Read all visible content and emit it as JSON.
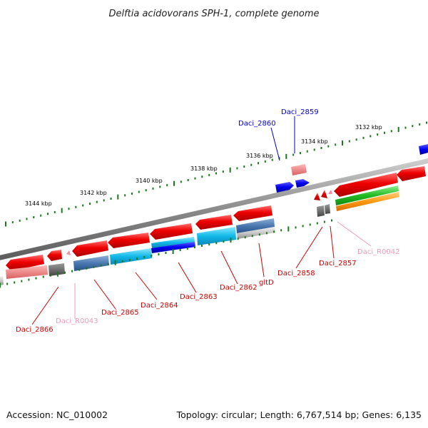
{
  "title": "Delftia acidovorans SPH-1, complete genome",
  "footer": {
    "accession": "Accession: NC_010002",
    "summary": "Topology: circular; Length: 6,767,514 bp; Genes: 6,135"
  },
  "scale_labels": [
    "3132 kbp",
    "3134 kbp",
    "3136 kbp",
    "3138 kbp",
    "3140 kbp",
    "3142 kbp",
    "3144 kbp"
  ],
  "gene_labels": [
    {
      "text": "Daci_2859",
      "strand": "forward",
      "color": "#0000cc"
    },
    {
      "text": "Daci_2860",
      "strand": "forward",
      "color": "#0000cc"
    },
    {
      "text": "Daci_R0042",
      "strand": "reverse",
      "color": "#f39ab8"
    },
    {
      "text": "Daci_2857",
      "strand": "reverse",
      "color": "#cc0000"
    },
    {
      "text": "Daci_2858",
      "strand": "reverse",
      "color": "#cc0000"
    },
    {
      "text": "gltD",
      "strand": "reverse",
      "color": "#cc0000"
    },
    {
      "text": "Daci_2862",
      "strand": "reverse",
      "color": "#cc0000"
    },
    {
      "text": "Daci_2863",
      "strand": "reverse",
      "color": "#cc0000"
    },
    {
      "text": "Daci_2864",
      "strand": "reverse",
      "color": "#cc0000"
    },
    {
      "text": "Daci_2865",
      "strand": "reverse",
      "color": "#cc0000"
    },
    {
      "text": "Daci_R0043",
      "strand": "reverse",
      "color": "#f39ab8"
    },
    {
      "text": "Daci_2866",
      "strand": "reverse",
      "color": "#cc0000"
    }
  ],
  "colors": {
    "forward_gene": "#0000ee",
    "reverse_gene": "#ee0000",
    "rna_gene": "#f48aa8",
    "tick": "#1a7a1a",
    "backbone": "#777777"
  }
}
